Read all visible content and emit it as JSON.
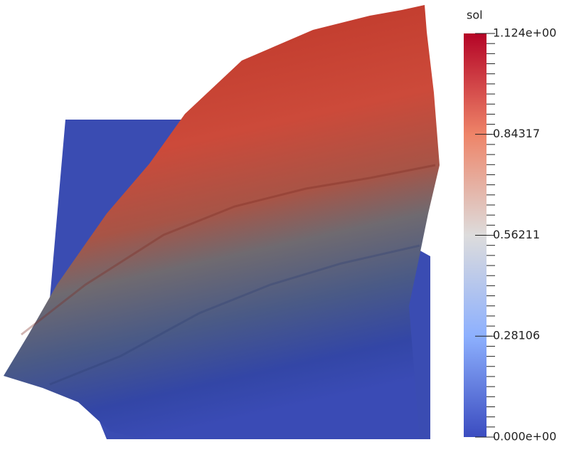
{
  "colorbar": {
    "title": "sol",
    "range": [
      0,
      1.124
    ],
    "ticks": [
      {
        "value": 1.124,
        "label": "1.124e+00"
      },
      0.84317,
      0.56211,
      0.28106,
      {
        "value": 0,
        "label": "0.000e+00"
      }
    ]
  }
}
